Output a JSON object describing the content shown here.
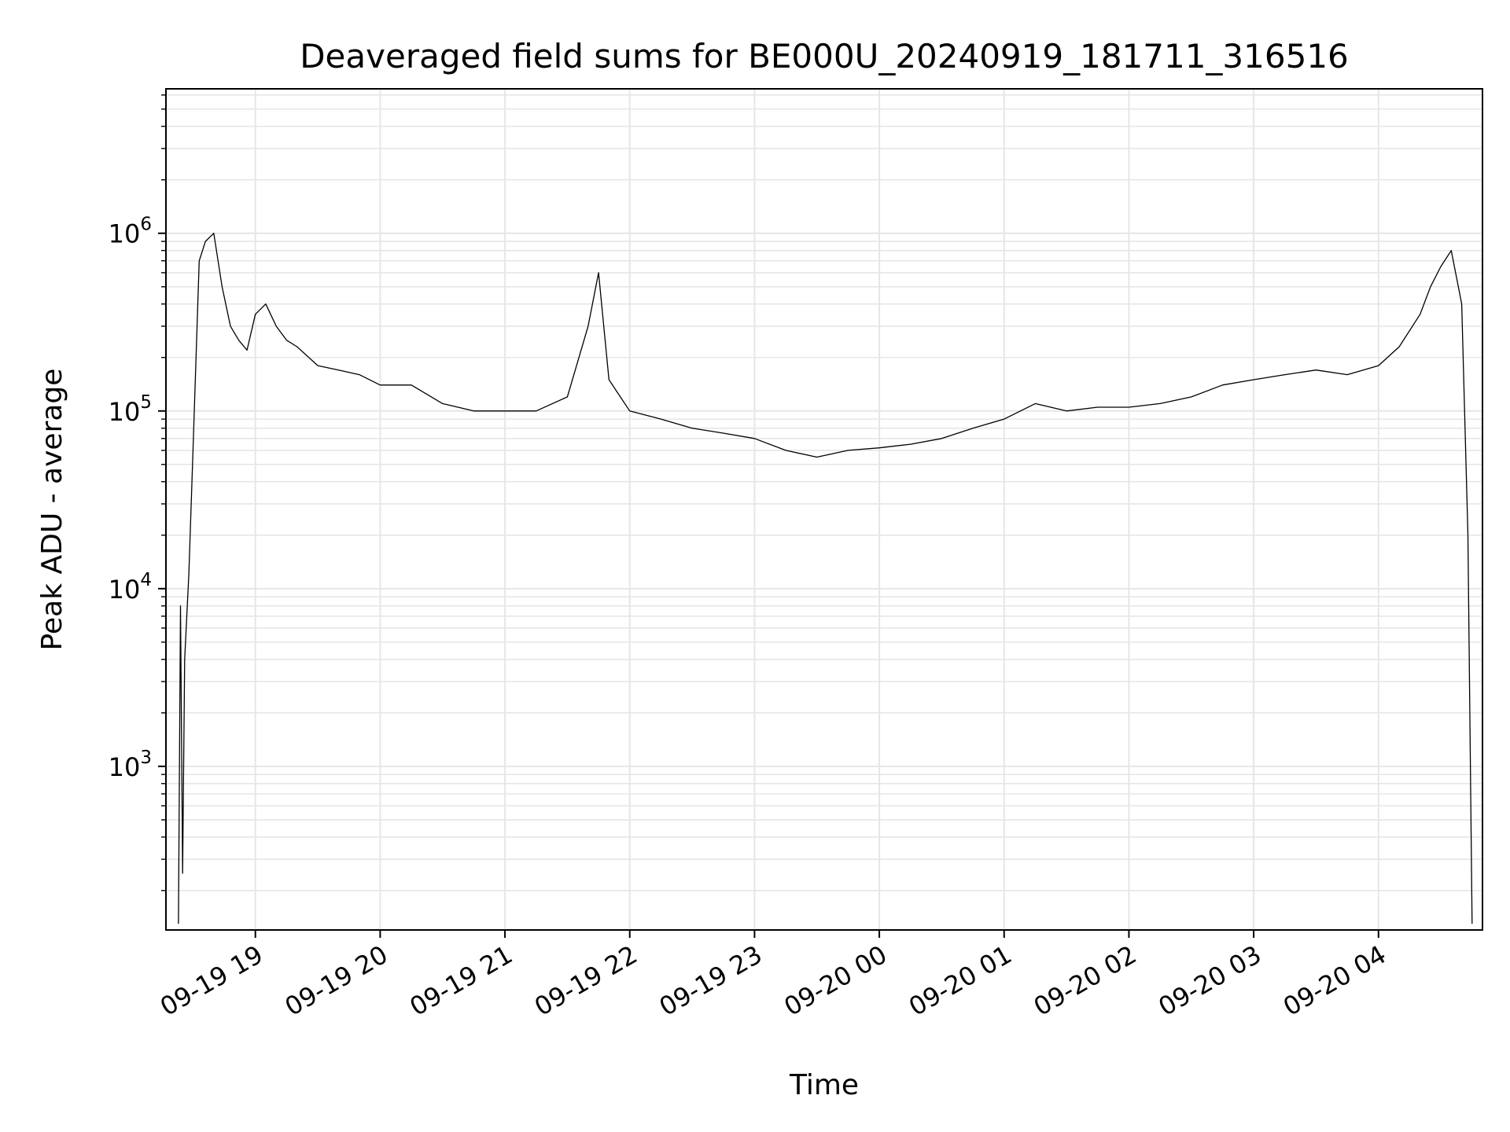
{
  "chart_data": {
    "type": "line",
    "title": "Deaveraged field sums for BE000U_20240919_181711_316516",
    "xlabel": "Time",
    "ylabel": "Peak ADU - average",
    "yscale": "log",
    "grid": true,
    "line_color": "#000000",
    "grid_color": "#e6e6e6",
    "xlim": [
      "2024-09-19 18:17",
      "2024-09-20 04:50"
    ],
    "ylim": [
      120,
      6500000
    ],
    "x_ticks": [
      {
        "value": "2024-09-19 19:00",
        "label": "09-19 19"
      },
      {
        "value": "2024-09-19 20:00",
        "label": "09-19 20"
      },
      {
        "value": "2024-09-19 21:00",
        "label": "09-19 21"
      },
      {
        "value": "2024-09-19 22:00",
        "label": "09-19 22"
      },
      {
        "value": "2024-09-19 23:00",
        "label": "09-19 23"
      },
      {
        "value": "2024-09-20 00:00",
        "label": "09-20 00"
      },
      {
        "value": "2024-09-20 01:00",
        "label": "09-20 01"
      },
      {
        "value": "2024-09-20 02:00",
        "label": "09-20 02"
      },
      {
        "value": "2024-09-20 03:00",
        "label": "09-20 03"
      },
      {
        "value": "2024-09-20 04:00",
        "label": "09-20 04"
      }
    ],
    "y_ticks": [
      {
        "value": 1000,
        "base": "10",
        "exp": "3"
      },
      {
        "value": 10000,
        "base": "10",
        "exp": "4"
      },
      {
        "value": 100000,
        "base": "10",
        "exp": "5"
      },
      {
        "value": 1000000,
        "base": "10",
        "exp": "6"
      }
    ],
    "series": [
      {
        "x": [
          "2024-09-19 18:23",
          "2024-09-19 18:24",
          "2024-09-19 18:25",
          "2024-09-19 18:26",
          "2024-09-19 18:28",
          "2024-09-19 18:30",
          "2024-09-19 18:33",
          "2024-09-19 18:36",
          "2024-09-19 18:40",
          "2024-09-19 18:44",
          "2024-09-19 18:48",
          "2024-09-19 18:52",
          "2024-09-19 18:56",
          "2024-09-19 19:00",
          "2024-09-19 19:05",
          "2024-09-19 19:10",
          "2024-09-19 19:15",
          "2024-09-19 19:20",
          "2024-09-19 19:30",
          "2024-09-19 19:40",
          "2024-09-19 19:50",
          "2024-09-19 20:00",
          "2024-09-19 20:15",
          "2024-09-19 20:30",
          "2024-09-19 20:45",
          "2024-09-19 21:00",
          "2024-09-19 21:15",
          "2024-09-19 21:30",
          "2024-09-19 21:40",
          "2024-09-19 21:45",
          "2024-09-19 21:50",
          "2024-09-19 22:00",
          "2024-09-19 22:15",
          "2024-09-19 22:30",
          "2024-09-19 22:45",
          "2024-09-19 23:00",
          "2024-09-19 23:15",
          "2024-09-19 23:30",
          "2024-09-19 23:45",
          "2024-09-20 00:00",
          "2024-09-20 00:15",
          "2024-09-20 00:30",
          "2024-09-20 00:45",
          "2024-09-20 01:00",
          "2024-09-20 01:15",
          "2024-09-20 01:30",
          "2024-09-20 01:45",
          "2024-09-20 02:00",
          "2024-09-20 02:15",
          "2024-09-20 02:30",
          "2024-09-20 02:45",
          "2024-09-20 03:00",
          "2024-09-20 03:15",
          "2024-09-20 03:30",
          "2024-09-20 03:45",
          "2024-09-20 04:00",
          "2024-09-20 04:10",
          "2024-09-20 04:20",
          "2024-09-20 04:25",
          "2024-09-20 04:30",
          "2024-09-20 04:35",
          "2024-09-20 04:40",
          "2024-09-20 04:43",
          "2024-09-20 04:45"
        ],
        "values": [
          130,
          8000,
          250,
          4000,
          12000,
          60000,
          700000,
          900000,
          1000000,
          500000,
          300000,
          250000,
          220000,
          350000,
          400000,
          300000,
          250000,
          230000,
          180000,
          170000,
          160000,
          140000,
          140000,
          110000,
          100000,
          100000,
          100000,
          120000,
          300000,
          600000,
          150000,
          100000,
          90000,
          80000,
          75000,
          70000,
          60000,
          55000,
          60000,
          62000,
          65000,
          70000,
          80000,
          90000,
          110000,
          100000,
          105000,
          105000,
          110000,
          120000,
          140000,
          150000,
          160000,
          170000,
          160000,
          180000,
          230000,
          350000,
          500000,
          650000,
          800000,
          400000,
          20000,
          130
        ]
      }
    ]
  }
}
